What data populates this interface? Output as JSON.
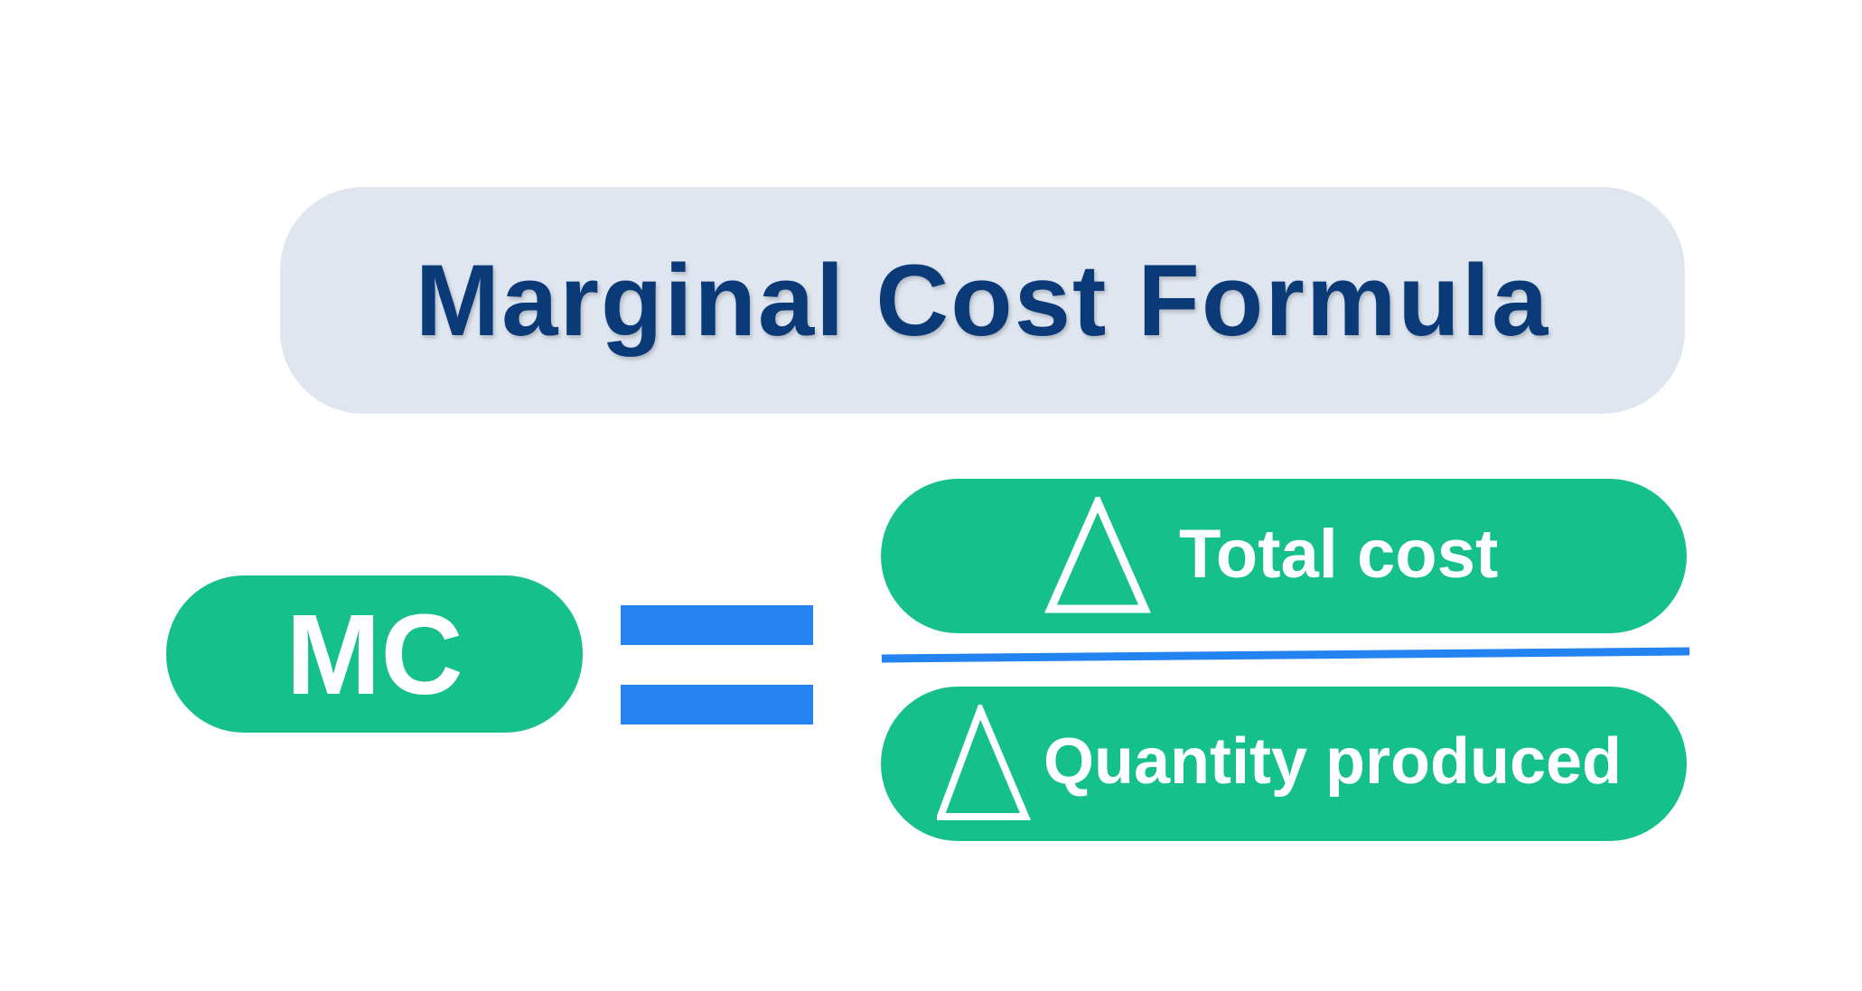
{
  "title": "Marginal Cost Formula",
  "lhs": "MC",
  "operator_icon": "equals-sign",
  "numerator": {
    "symbol": "delta-triangle-icon",
    "label": "Total cost"
  },
  "denominator": {
    "symbol": "delta-triangle-icon",
    "label": "Quantity produced"
  },
  "colors": {
    "title_bg": "#dfe6f0",
    "title_text": "#0b3a78",
    "pill_green": "#16c08a",
    "accent_blue": "#2383f0"
  }
}
